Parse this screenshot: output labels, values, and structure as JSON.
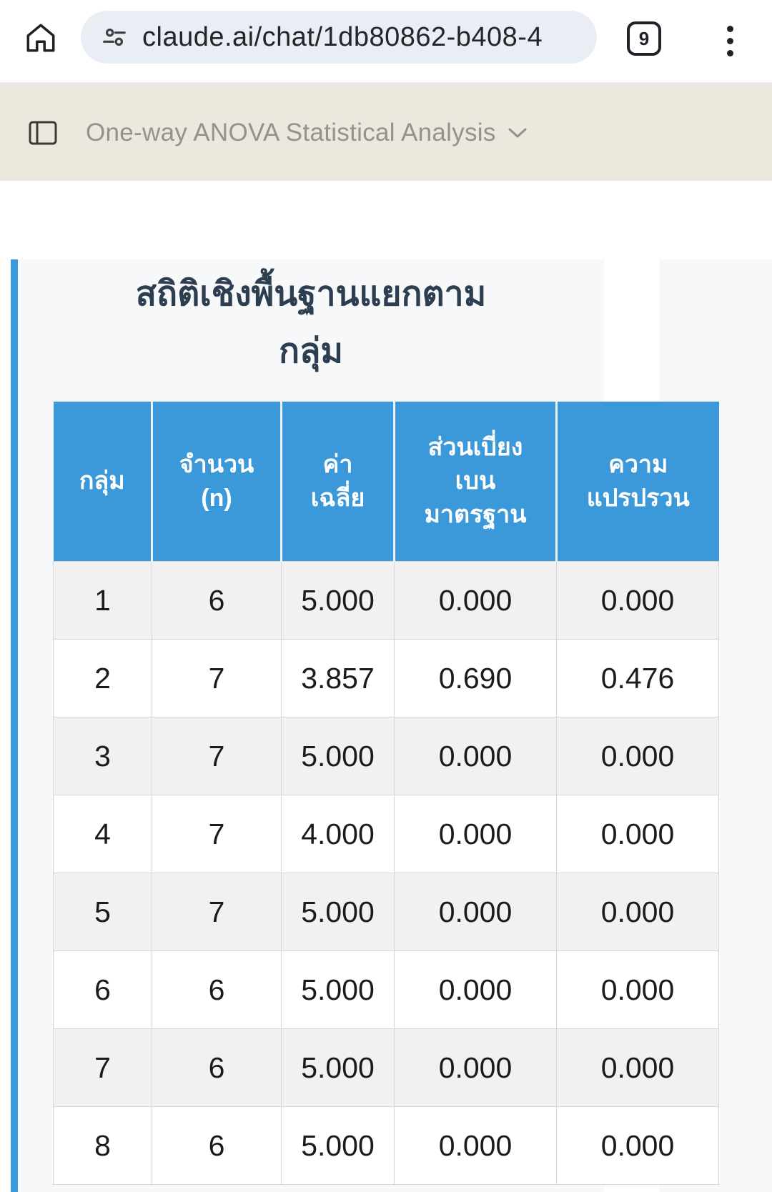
{
  "browser": {
    "url": "claude.ai/chat/1db80862-b408-4",
    "tab_count": "9"
  },
  "chat_header": {
    "title": "One-way ANOVA Statistical Analysis"
  },
  "artifact": {
    "title": "สถิติเชิงพื้นฐานแยกตาม\nกลุ่ม",
    "table": {
      "headers": [
        "กลุ่ม",
        "จำนวน\n(n)",
        "ค่า\nเฉลี่ย",
        "ส่วนเบี่ยง\nเบน\nมาตรฐาน",
        "ความ\nแปรปรวน"
      ],
      "rows": [
        [
          "1",
          "6",
          "5.000",
          "0.000",
          "0.000"
        ],
        [
          "2",
          "7",
          "3.857",
          "0.690",
          "0.476"
        ],
        [
          "3",
          "7",
          "5.000",
          "0.000",
          "0.000"
        ],
        [
          "4",
          "7",
          "4.000",
          "0.000",
          "0.000"
        ],
        [
          "5",
          "7",
          "5.000",
          "0.000",
          "0.000"
        ],
        [
          "6",
          "6",
          "5.000",
          "0.000",
          "0.000"
        ],
        [
          "7",
          "6",
          "5.000",
          "0.000",
          "0.000"
        ],
        [
          "8",
          "6",
          "5.000",
          "0.000",
          "0.000"
        ]
      ]
    }
  },
  "colors": {
    "accent_blue": "#3b98d9",
    "title_navy": "#2c3e50",
    "card_bg": "#f7f8fa",
    "row_stripe": "#f1f1f2",
    "chrome_beige": "#ebe9de",
    "url_pill": "#e9edf4"
  }
}
